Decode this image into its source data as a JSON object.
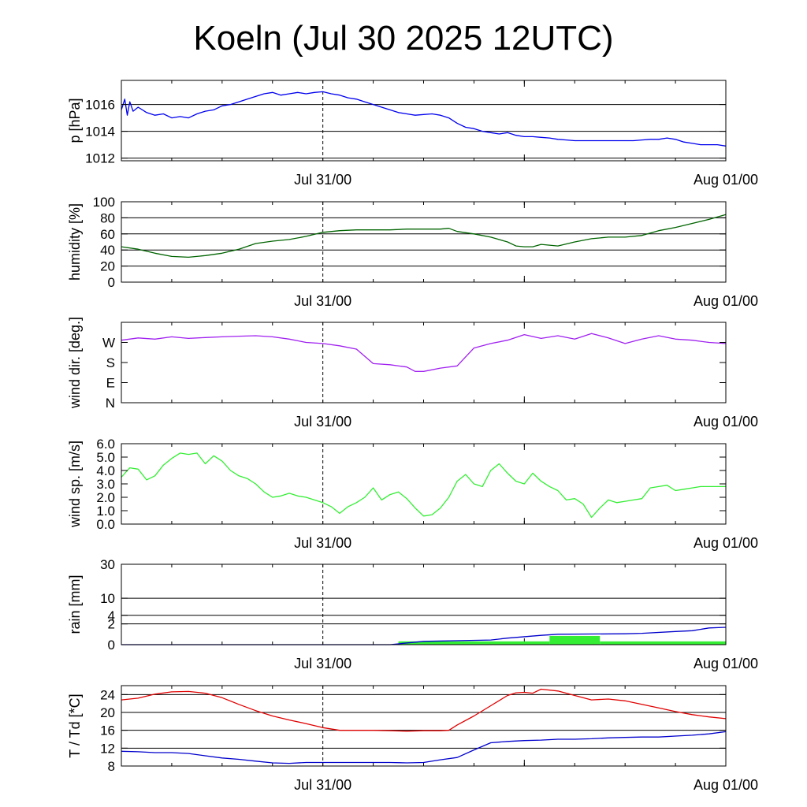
{
  "title": "Koeln (Jul 30 2025 12UTC)",
  "colors": {
    "pressure": "#0000ee",
    "humidity": "#006400",
    "wind_dir": "#a020f0",
    "wind_speed": "#33ee33",
    "rain_cum": "#0000cc",
    "rain_bar": "#33ee33",
    "temperature": "#e00000",
    "dewpoint": "#0000cc"
  },
  "chart_data": [
    {
      "id": "pressure",
      "type": "line",
      "ylabel": "p [hPa]",
      "ylim": [
        1011.8,
        1017.8
      ],
      "yticks": [
        1012,
        1014,
        1016
      ],
      "ytick_labels": [
        "1012",
        "1014",
        "1016"
      ],
      "grid_y": [
        1012,
        1014,
        1016
      ],
      "x_tick_labels": [
        "Jul 31/00",
        "Aug 01/00"
      ],
      "x_range_hours": [
        0,
        36
      ],
      "series": [
        {
          "key": "pressure",
          "color_key": "pressure",
          "x": [
            0,
            0.2,
            0.35,
            0.5,
            0.7,
            1,
            1.5,
            2,
            2.5,
            3,
            3.5,
            4,
            4.5,
            5,
            5.5,
            6,
            6.5,
            7,
            7.5,
            8,
            8.5,
            9,
            9.5,
            10,
            10.5,
            11,
            11.5,
            12,
            12.5,
            13,
            13.5,
            14,
            14.5,
            15,
            15.5,
            16,
            16.5,
            17,
            17.5,
            18,
            18.5,
            19,
            19.5,
            20,
            20.5,
            21,
            21.5,
            22,
            22.5,
            23,
            23.5,
            24,
            24.5,
            25,
            25.5,
            26,
            26.5,
            27,
            27.5,
            28,
            28.5,
            29,
            29.5,
            30,
            30.5,
            31,
            31.5,
            32,
            32.5,
            33,
            33.5,
            34,
            34.5,
            35,
            35.5,
            36
          ],
          "y": [
            1015.6,
            1016.4,
            1015.2,
            1016.2,
            1015.5,
            1015.8,
            1015.4,
            1015.2,
            1015.3,
            1015.0,
            1015.1,
            1015.0,
            1015.3,
            1015.5,
            1015.6,
            1015.9,
            1016.0,
            1016.2,
            1016.4,
            1016.6,
            1016.8,
            1016.9,
            1016.7,
            1016.8,
            1016.9,
            1016.8,
            1016.9,
            1016.95,
            1016.8,
            1016.7,
            1016.5,
            1016.4,
            1016.2,
            1016.0,
            1015.8,
            1015.6,
            1015.4,
            1015.3,
            1015.2,
            1015.25,
            1015.3,
            1015.2,
            1015.0,
            1014.6,
            1014.3,
            1014.2,
            1014.0,
            1013.9,
            1013.8,
            1013.9,
            1013.7,
            1013.6,
            1013.6,
            1013.55,
            1013.5,
            1013.4,
            1013.35,
            1013.3,
            1013.3,
            1013.3,
            1013.3,
            1013.3,
            1013.3,
            1013.3,
            1013.3,
            1013.35,
            1013.4,
            1013.4,
            1013.5,
            1013.4,
            1013.2,
            1013.1,
            1013.0,
            1013.0,
            1013.0,
            1012.9
          ]
        }
      ]
    },
    {
      "id": "humidity",
      "type": "line",
      "ylabel": "humidity [%]",
      "ylim": [
        0,
        100
      ],
      "yticks": [
        0,
        20,
        40,
        60,
        80,
        100
      ],
      "ytick_labels": [
        "0",
        "20",
        "40",
        "60",
        "80",
        "100"
      ],
      "grid_y": [
        20,
        40,
        60,
        80
      ],
      "x_tick_labels": [
        "Jul 31/00",
        "Aug 01/00"
      ],
      "x_range_hours": [
        0,
        36
      ],
      "series": [
        {
          "key": "humidity",
          "color_key": "humidity",
          "x": [
            0,
            1,
            2,
            3,
            4,
            5,
            6,
            7,
            8,
            9,
            10,
            11,
            12,
            13,
            14,
            15,
            16,
            17,
            18,
            19,
            19.5,
            20,
            21,
            22,
            23,
            23.5,
            24,
            24.5,
            25,
            26,
            27,
            28,
            29,
            30,
            31,
            32,
            33,
            34,
            35,
            36
          ],
          "y": [
            44,
            41,
            36,
            32,
            31,
            33,
            36,
            41,
            48,
            51,
            53,
            57,
            62,
            64,
            65,
            65,
            65,
            66,
            66,
            66,
            67,
            63,
            60,
            56,
            50,
            45,
            44,
            44,
            47,
            45,
            50,
            54,
            56,
            56,
            58,
            64,
            68,
            73,
            78,
            84
          ]
        }
      ]
    },
    {
      "id": "wind_dir",
      "type": "line",
      "ylabel": "wind dir. [deg.]",
      "ylim": [
        0,
        360
      ],
      "yticks": [
        0,
        90,
        180,
        270
      ],
      "ytick_labels": [
        "N",
        "E",
        "S",
        "W"
      ],
      "grid_y": [],
      "x_tick_labels": [
        "Jul 31/00",
        "Aug 01/00"
      ],
      "x_range_hours": [
        0,
        36
      ],
      "series": [
        {
          "key": "wind_dir",
          "color_key": "wind_dir",
          "x": [
            0,
            1,
            2,
            3,
            4,
            5,
            6,
            7,
            8,
            9,
            10,
            11,
            12,
            13,
            14,
            15,
            16,
            17,
            17.5,
            18,
            19,
            20,
            21,
            22,
            23,
            24,
            25,
            26,
            27,
            28,
            29,
            30,
            31,
            32,
            33,
            34,
            35,
            36
          ],
          "y": [
            280,
            290,
            285,
            295,
            288,
            292,
            295,
            298,
            300,
            295,
            285,
            270,
            265,
            255,
            240,
            175,
            170,
            160,
            140,
            140,
            155,
            165,
            245,
            265,
            280,
            305,
            288,
            300,
            285,
            310,
            290,
            265,
            285,
            300,
            285,
            280,
            270,
            265
          ]
        }
      ]
    },
    {
      "id": "wind_speed",
      "type": "line",
      "ylabel": "wind sp. [m/s]",
      "ylim": [
        0,
        6
      ],
      "yticks": [
        0,
        1,
        2,
        3,
        4,
        5,
        6
      ],
      "ytick_labels": [
        "0.0",
        "1.0",
        "2.0",
        "3.0",
        "4.0",
        "5.0",
        "6.0"
      ],
      "grid_y": [],
      "x_tick_labels": [
        "Jul 31/00",
        "Aug 01/00"
      ],
      "x_range_hours": [
        0,
        36
      ],
      "series": [
        {
          "key": "wind_speed",
          "color_key": "wind_speed",
          "x": [
            0,
            0.5,
            1,
            1.5,
            2,
            2.5,
            3,
            3.5,
            4,
            4.5,
            5,
            5.5,
            6,
            6.5,
            7,
            7.5,
            8,
            8.5,
            9,
            9.5,
            10,
            10.5,
            11,
            11.5,
            12,
            12.5,
            13,
            13.5,
            14,
            14.5,
            15,
            15.5,
            16,
            16.5,
            17,
            17.5,
            18,
            18.5,
            19,
            19.5,
            20,
            20.5,
            21,
            21.5,
            22,
            22.5,
            23,
            23.5,
            24,
            24.5,
            25,
            25.5,
            26,
            26.5,
            27,
            27.5,
            28,
            28.5,
            29,
            29.5,
            30,
            30.5,
            31,
            31.5,
            32,
            32.5,
            33,
            33.5,
            34,
            34.5,
            35,
            35.5,
            36
          ],
          "y": [
            3.5,
            4.2,
            4.1,
            3.3,
            3.6,
            4.4,
            4.9,
            5.3,
            5.2,
            5.3,
            4.5,
            5.1,
            4.7,
            4.0,
            3.6,
            3.4,
            3.0,
            2.4,
            2.0,
            2.1,
            2.3,
            2.1,
            2.0,
            1.8,
            1.6,
            1.3,
            0.8,
            1.3,
            1.6,
            2.0,
            2.7,
            1.8,
            2.2,
            2.4,
            1.9,
            1.2,
            0.6,
            0.7,
            1.2,
            2.0,
            3.2,
            3.7,
            3.0,
            2.8,
            4.0,
            4.5,
            3.8,
            3.2,
            3.0,
            3.8,
            3.2,
            2.8,
            2.5,
            1.8,
            1.9,
            1.5,
            0.5,
            1.2,
            1.8,
            1.6,
            1.7,
            1.8,
            1.9,
            2.7,
            2.8,
            2.9,
            2.5,
            2.6,
            2.7,
            2.8,
            2.8,
            2.8,
            2.8
          ]
        }
      ]
    },
    {
      "id": "rain",
      "type": "line",
      "ylabel": "rain [mm]",
      "ylim": [
        0,
        30
      ],
      "yticks": [
        0,
        2,
        4,
        10,
        30
      ],
      "ytick_labels": [
        "0",
        "2",
        "4",
        "10",
        "30"
      ],
      "grid_y": [
        2,
        4,
        10,
        30
      ],
      "scale": "sqrt",
      "x_tick_labels": [
        "Jul 31/00",
        "Aug 01/00"
      ],
      "x_range_hours": [
        0,
        36
      ],
      "series": [
        {
          "key": "rain_cum",
          "color_key": "rain_cum",
          "x": [
            0,
            16,
            18,
            22,
            23,
            25,
            26,
            30,
            31,
            33,
            34,
            35,
            36
          ],
          "y": [
            0,
            0,
            0.05,
            0.1,
            0.2,
            0.4,
            0.5,
            0.55,
            0.6,
            0.8,
            0.9,
            1.3,
            1.4
          ]
        }
      ],
      "bars": {
        "color_key": "rain_bar",
        "x": [
          16.5,
          25.5,
          28.5
        ],
        "widths_hours": [
          9,
          3,
          7.5
        ],
        "values": [
          0.05,
          0.35,
          0.05
        ]
      }
    },
    {
      "id": "temperature",
      "type": "line",
      "ylabel": "T / Td [*C]",
      "ylim": [
        8,
        26
      ],
      "yticks": [
        8,
        12,
        16,
        20,
        24
      ],
      "ytick_labels": [
        "8",
        "12",
        "16",
        "20",
        "24"
      ],
      "grid_y": [
        12,
        16,
        20,
        24
      ],
      "x_tick_labels": [
        "Jul 31/00",
        "Aug 01/00"
      ],
      "x_range_hours": [
        0,
        36
      ],
      "series": [
        {
          "key": "T",
          "color_key": "temperature",
          "x": [
            0,
            1,
            2,
            3,
            4,
            5,
            6,
            7,
            8,
            9,
            10,
            11,
            12,
            13,
            14,
            15,
            16,
            17,
            18,
            19,
            19.5,
            20,
            21,
            22,
            23,
            23.5,
            24,
            24.5,
            25,
            26,
            27,
            28,
            29,
            30,
            31,
            32,
            33,
            34,
            35,
            36
          ],
          "y": [
            22.8,
            23.2,
            24.1,
            24.6,
            24.7,
            24.3,
            23.3,
            21.8,
            20.4,
            19.2,
            18.3,
            17.5,
            16.6,
            16.0,
            16.0,
            16.0,
            15.9,
            15.8,
            15.9,
            15.9,
            16.0,
            17.2,
            19.2,
            21.5,
            23.8,
            24.4,
            24.5,
            24.3,
            25.2,
            24.8,
            23.8,
            22.8,
            23.0,
            22.6,
            21.8,
            21.0,
            20.2,
            19.5,
            19.0,
            18.6
          ]
        },
        {
          "key": "Td",
          "color_key": "dewpoint",
          "x": [
            0,
            1,
            2,
            3,
            4,
            5,
            6,
            7,
            8,
            9,
            10,
            11,
            12,
            13,
            14,
            15,
            16,
            17,
            18,
            19,
            20,
            21,
            22,
            23,
            24,
            25,
            26,
            27,
            28,
            29,
            30,
            31,
            32,
            33,
            34,
            35,
            36
          ],
          "y": [
            11.3,
            11.2,
            11.0,
            11.0,
            10.8,
            10.3,
            9.8,
            9.5,
            9.1,
            8.7,
            8.6,
            8.8,
            8.8,
            8.8,
            8.8,
            8.8,
            8.8,
            8.7,
            8.8,
            9.4,
            9.9,
            11.6,
            13.2,
            13.5,
            13.7,
            13.8,
            14.0,
            14.0,
            14.1,
            14.3,
            14.4,
            14.5,
            14.5,
            14.7,
            14.9,
            15.2,
            15.7
          ]
        }
      ]
    }
  ]
}
